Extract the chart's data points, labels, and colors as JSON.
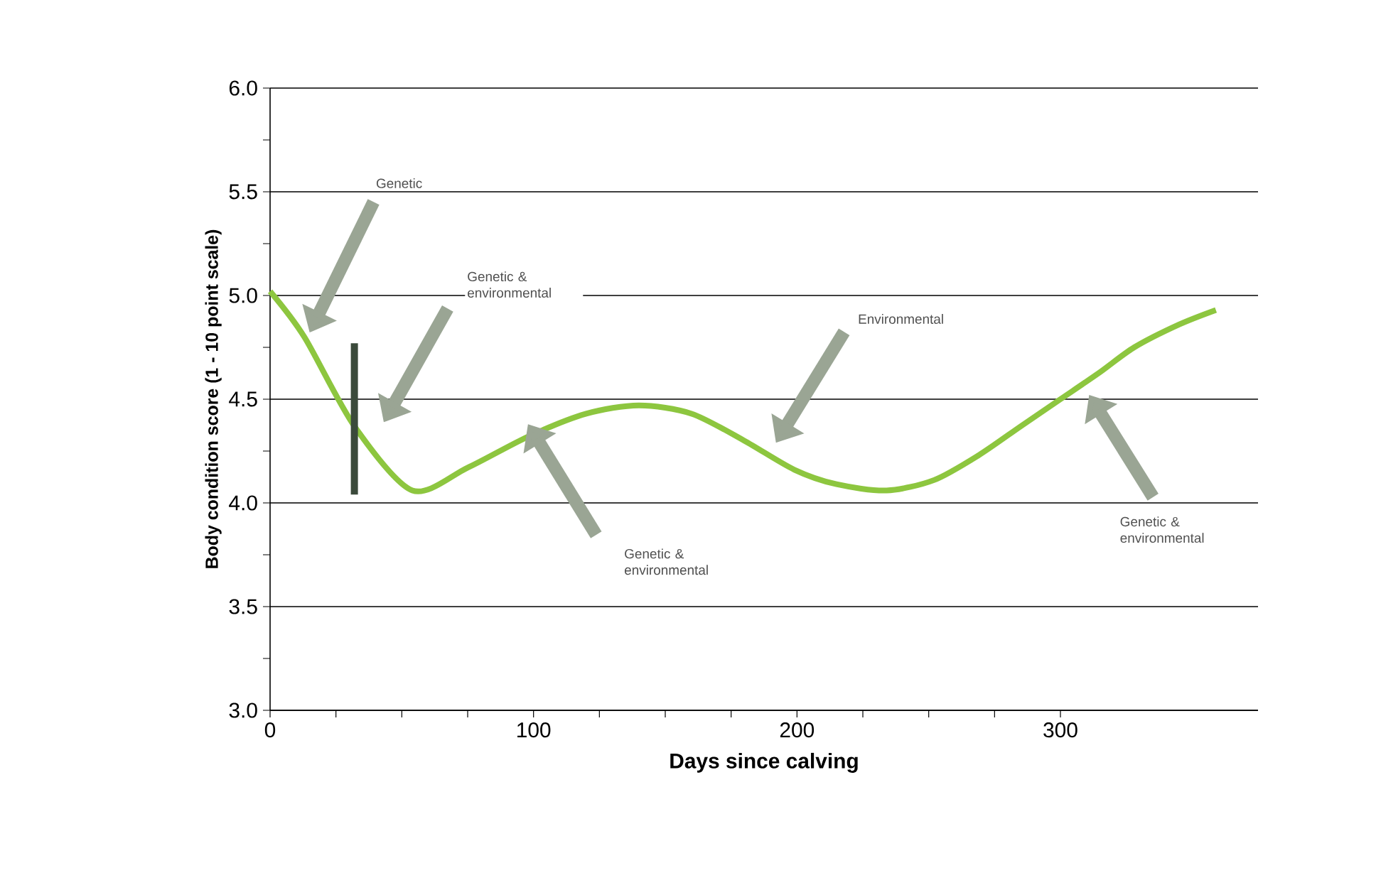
{
  "chart_data": {
    "type": "line",
    "xlabel": "Days since calving",
    "ylabel": "Body condition score (1 - 10 point scale)",
    "xlim": [
      0,
      375
    ],
    "xticks": [
      0,
      100,
      200,
      300
    ],
    "ylim": [
      3.0,
      6.0
    ],
    "yticks": [
      {
        "value": 3.0,
        "label": "3.0"
      },
      {
        "value": 3.5,
        "label": "3.5"
      },
      {
        "value": 4.0,
        "label": "4.0"
      },
      {
        "value": 4.5,
        "label": "4.5"
      },
      {
        "value": 5.0,
        "label": "5.0"
      },
      {
        "value": 5.5,
        "label": "5.5"
      },
      {
        "value": 6.0,
        "label": "6.0"
      }
    ],
    "grid": "y",
    "series": [
      {
        "color": "#8dc63f",
        "x": [
          0,
          13,
          32,
          54,
          75,
          98,
          120,
          140,
          160,
          180,
          199,
          215,
          234,
          252,
          269,
          285,
          300,
          315,
          328,
          345,
          359
        ],
        "values": [
          5.02,
          4.8,
          4.37,
          4.06,
          4.17,
          4.32,
          4.43,
          4.47,
          4.43,
          4.3,
          4.16,
          4.09,
          4.06,
          4.11,
          4.23,
          4.37,
          4.5,
          4.63,
          4.75,
          4.86,
          4.93
        ]
      },
      {
        "color": "#3b4a3b",
        "x": [
          32,
          32
        ],
        "values": [
          4.04,
          4.77
        ]
      }
    ],
    "annotations": [
      "Genetic",
      "Genetic & environmental",
      "Genetic & environmental",
      "Environmental",
      "Genetic & environmental"
    ]
  }
}
